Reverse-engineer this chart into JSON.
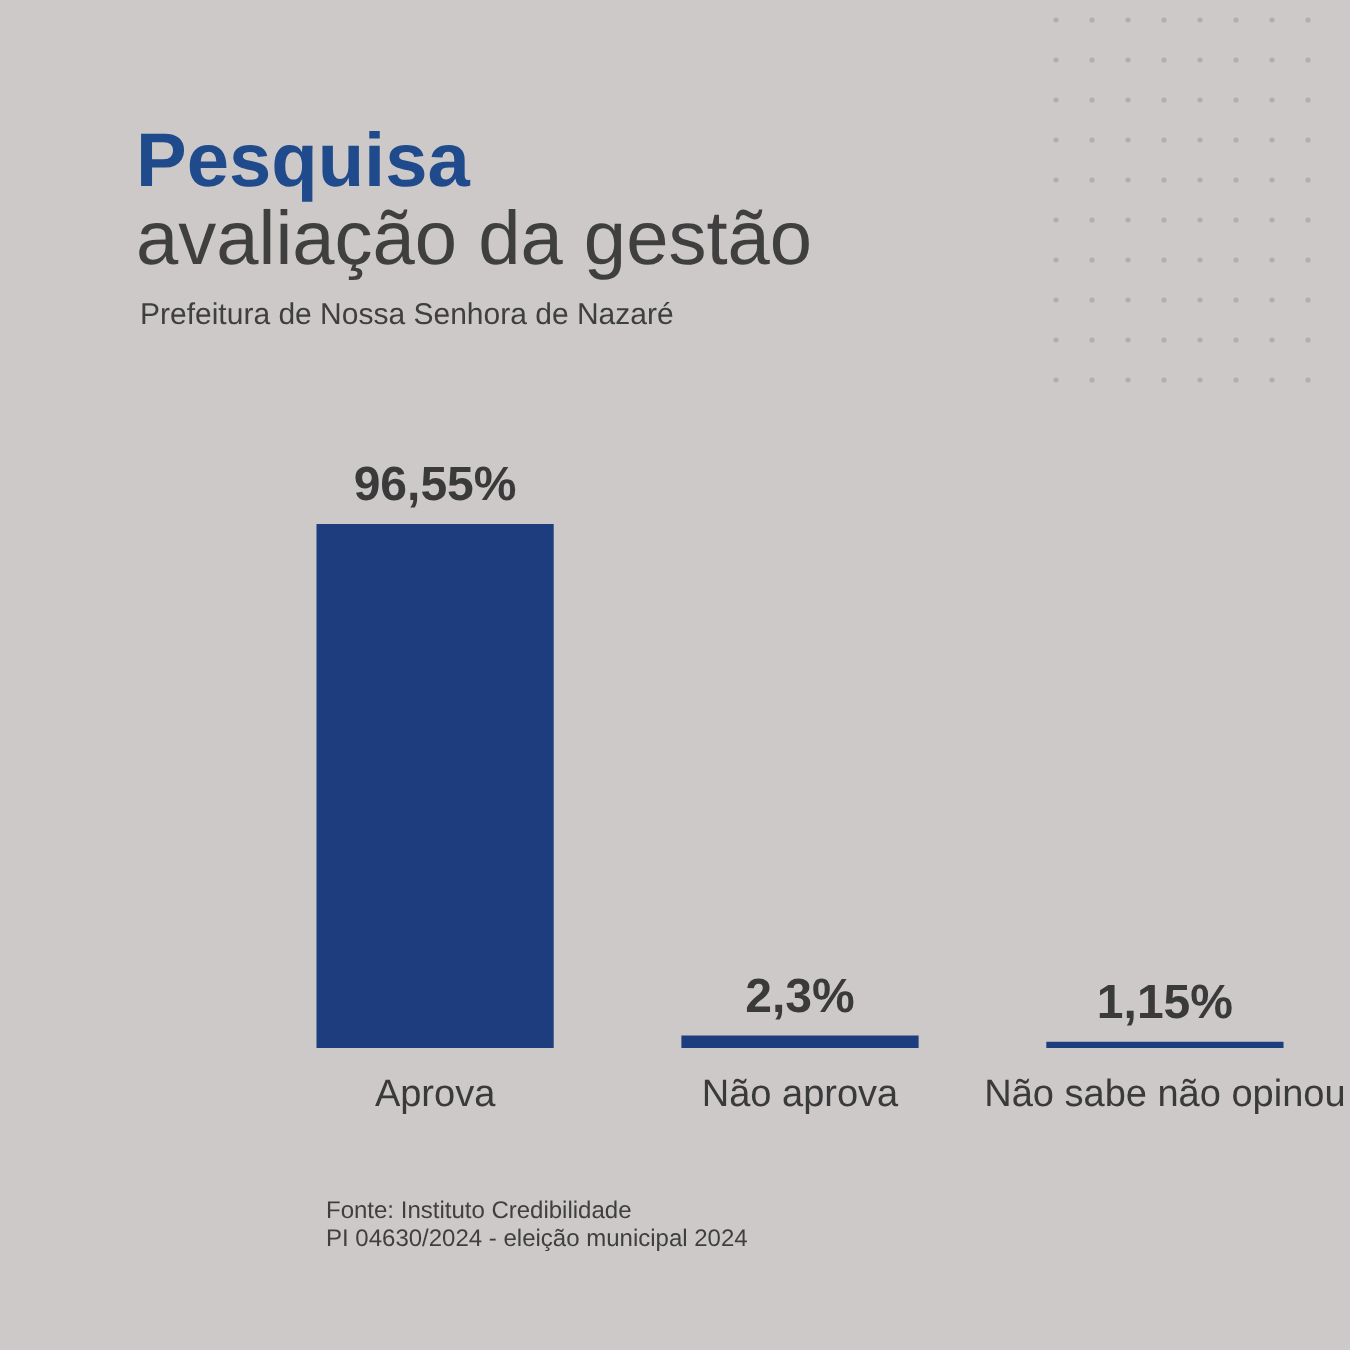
{
  "chart_data": {
    "type": "bar",
    "title": "Pesquisa",
    "subtitle": "avaliação da gestão",
    "annotations": [
      "Prefeitura de Nossa Senhora de Nazaré",
      "Fonte: Instituto Credibilidade",
      "PI 04630/2024 - eleição municipal 2024"
    ],
    "categories": [
      "Aprova",
      "Não aprova",
      "Não sabe não opinou"
    ],
    "values": [
      96.55,
      2.3,
      1.15
    ],
    "value_labels": [
      "96,55%",
      "2,3%",
      "1,15%"
    ],
    "color": "#1d3d7e"
  }
}
